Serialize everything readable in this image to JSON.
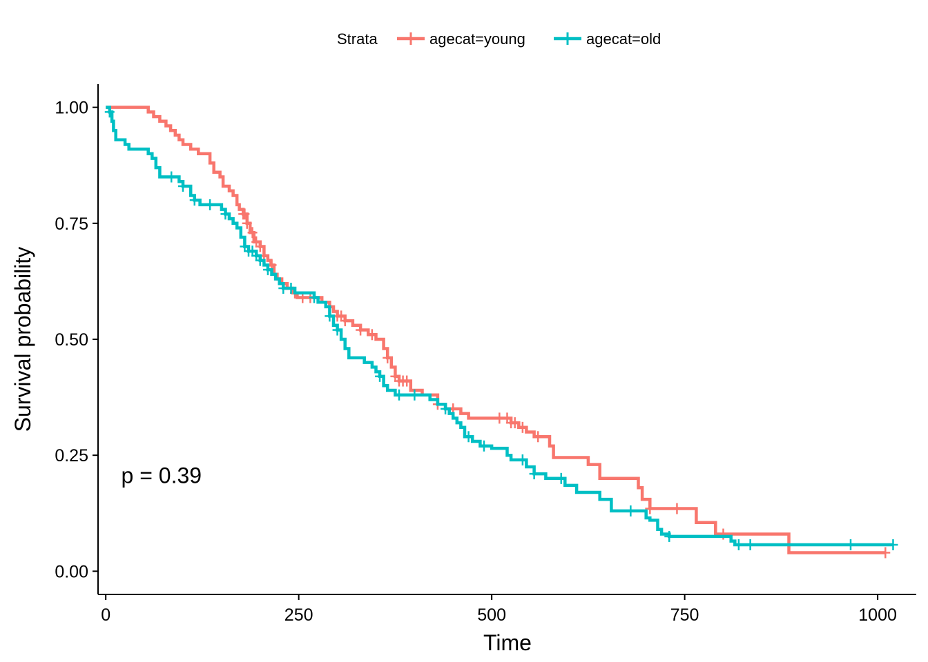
{
  "chart_data": {
    "type": "line",
    "subtype": "step",
    "xlabel": "Time",
    "ylabel": "Survival probability",
    "xlim": [
      -10,
      1050
    ],
    "ylim": [
      -0.05,
      1.05
    ],
    "x_ticks": [
      0,
      250,
      500,
      750,
      1000
    ],
    "x_tick_labels": [
      "0",
      "250",
      "500",
      "750",
      "1000"
    ],
    "y_ticks": [
      0,
      0.25,
      0.5,
      0.75,
      1
    ],
    "y_tick_labels": [
      "0.00",
      "0.25",
      "0.50",
      "0.75",
      "1.00"
    ],
    "grid": false,
    "legend": {
      "title": "Strata",
      "position": "top",
      "entries": [
        "agecat=young",
        "agecat=old"
      ]
    },
    "annotation": {
      "text": "p = 0.39",
      "x": 20,
      "y": 0.19
    },
    "series": [
      {
        "name": "agecat=young",
        "color": "#F8766D",
        "steps": [
          [
            0,
            1.0
          ],
          [
            55,
            0.99
          ],
          [
            62,
            0.98
          ],
          [
            70,
            0.97
          ],
          [
            78,
            0.96
          ],
          [
            84,
            0.95
          ],
          [
            90,
            0.94
          ],
          [
            95,
            0.93
          ],
          [
            100,
            0.92
          ],
          [
            110,
            0.91
          ],
          [
            120,
            0.9
          ],
          [
            135,
            0.88
          ],
          [
            140,
            0.86
          ],
          [
            148,
            0.85
          ],
          [
            152,
            0.83
          ],
          [
            160,
            0.82
          ],
          [
            165,
            0.81
          ],
          [
            170,
            0.79
          ],
          [
            173,
            0.78
          ],
          [
            178,
            0.77
          ],
          [
            183,
            0.75
          ],
          [
            187,
            0.73
          ],
          [
            192,
            0.71
          ],
          [
            200,
            0.7
          ],
          [
            205,
            0.68
          ],
          [
            210,
            0.67
          ],
          [
            214,
            0.66
          ],
          [
            218,
            0.64
          ],
          [
            222,
            0.63
          ],
          [
            228,
            0.62
          ],
          [
            235,
            0.61
          ],
          [
            242,
            0.6
          ],
          [
            248,
            0.59
          ],
          [
            280,
            0.58
          ],
          [
            290,
            0.57
          ],
          [
            295,
            0.56
          ],
          [
            300,
            0.55
          ],
          [
            310,
            0.54
          ],
          [
            320,
            0.53
          ],
          [
            330,
            0.52
          ],
          [
            340,
            0.51
          ],
          [
            350,
            0.5
          ],
          [
            360,
            0.48
          ],
          [
            365,
            0.46
          ],
          [
            370,
            0.44
          ],
          [
            375,
            0.42
          ],
          [
            380,
            0.41
          ],
          [
            395,
            0.39
          ],
          [
            410,
            0.38
          ],
          [
            430,
            0.36
          ],
          [
            440,
            0.35
          ],
          [
            460,
            0.34
          ],
          [
            470,
            0.33
          ],
          [
            525,
            0.32
          ],
          [
            535,
            0.31
          ],
          [
            545,
            0.3
          ],
          [
            555,
            0.29
          ],
          [
            575,
            0.27
          ],
          [
            580,
            0.245
          ],
          [
            625,
            0.23
          ],
          [
            640,
            0.2
          ],
          [
            690,
            0.18
          ],
          [
            695,
            0.155
          ],
          [
            705,
            0.135
          ],
          [
            765,
            0.105
          ],
          [
            790,
            0.08
          ],
          [
            885,
            0.04
          ],
          [
            1010,
            0.04
          ]
        ],
        "censor_times": [
          178,
          180,
          183,
          190,
          195,
          200,
          205,
          215,
          245,
          255,
          265,
          290,
          300,
          305,
          310,
          330,
          345,
          365,
          375,
          380,
          385,
          390,
          430,
          450,
          510,
          520,
          525,
          530,
          540,
          560,
          705,
          740,
          800,
          1010
        ]
      },
      {
        "name": "agecat=old",
        "color": "#00BFC4",
        "steps": [
          [
            0,
            1.0
          ],
          [
            5,
            0.99
          ],
          [
            8,
            0.97
          ],
          [
            10,
            0.95
          ],
          [
            13,
            0.93
          ],
          [
            20,
            0.93
          ],
          [
            25,
            0.92
          ],
          [
            30,
            0.91
          ],
          [
            45,
            0.91
          ],
          [
            55,
            0.9
          ],
          [
            60,
            0.89
          ],
          [
            65,
            0.87
          ],
          [
            70,
            0.85
          ],
          [
            90,
            0.85
          ],
          [
            95,
            0.84
          ],
          [
            100,
            0.83
          ],
          [
            110,
            0.81
          ],
          [
            115,
            0.8
          ],
          [
            122,
            0.79
          ],
          [
            140,
            0.79
          ],
          [
            150,
            0.78
          ],
          [
            155,
            0.77
          ],
          [
            160,
            0.76
          ],
          [
            165,
            0.75
          ],
          [
            170,
            0.74
          ],
          [
            175,
            0.72
          ],
          [
            180,
            0.7
          ],
          [
            185,
            0.69
          ],
          [
            195,
            0.68
          ],
          [
            200,
            0.67
          ],
          [
            205,
            0.66
          ],
          [
            210,
            0.65
          ],
          [
            215,
            0.64
          ],
          [
            220,
            0.63
          ],
          [
            225,
            0.62
          ],
          [
            230,
            0.61
          ],
          [
            240,
            0.61
          ],
          [
            245,
            0.6
          ],
          [
            270,
            0.59
          ],
          [
            275,
            0.58
          ],
          [
            285,
            0.57
          ],
          [
            290,
            0.55
          ],
          [
            295,
            0.53
          ],
          [
            300,
            0.52
          ],
          [
            305,
            0.5
          ],
          [
            310,
            0.48
          ],
          [
            315,
            0.46
          ],
          [
            335,
            0.45
          ],
          [
            345,
            0.44
          ],
          [
            350,
            0.43
          ],
          [
            355,
            0.42
          ],
          [
            360,
            0.4
          ],
          [
            365,
            0.39
          ],
          [
            375,
            0.38
          ],
          [
            420,
            0.37
          ],
          [
            430,
            0.36
          ],
          [
            440,
            0.35
          ],
          [
            445,
            0.34
          ],
          [
            450,
            0.33
          ],
          [
            455,
            0.32
          ],
          [
            460,
            0.31
          ],
          [
            465,
            0.29
          ],
          [
            475,
            0.28
          ],
          [
            485,
            0.27
          ],
          [
            500,
            0.265
          ],
          [
            520,
            0.25
          ],
          [
            525,
            0.24
          ],
          [
            545,
            0.225
          ],
          [
            555,
            0.21
          ],
          [
            570,
            0.2
          ],
          [
            595,
            0.185
          ],
          [
            610,
            0.17
          ],
          [
            640,
            0.155
          ],
          [
            655,
            0.13
          ],
          [
            700,
            0.115
          ],
          [
            705,
            0.11
          ],
          [
            715,
            0.09
          ],
          [
            720,
            0.08
          ],
          [
            730,
            0.075
          ],
          [
            810,
            0.065
          ],
          [
            815,
            0.057
          ],
          [
            1020,
            0.057
          ]
        ],
        "censor_times": [
          5,
          85,
          100,
          115,
          135,
          155,
          180,
          185,
          190,
          195,
          200,
          210,
          230,
          240,
          270,
          290,
          300,
          355,
          380,
          400,
          440,
          470,
          490,
          540,
          555,
          590,
          680,
          730,
          820,
          835,
          965,
          1020
        ]
      }
    ]
  }
}
